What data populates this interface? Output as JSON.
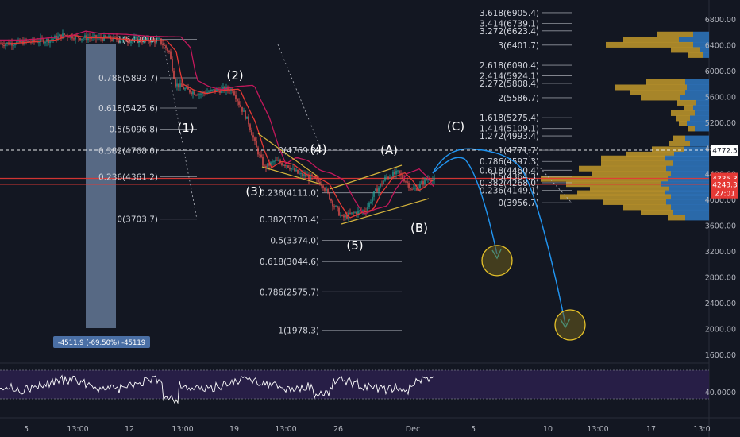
{
  "chart_data": {
    "type": "candlestick",
    "y_axis": {
      "ticks": [
        "6800.00",
        "6400.00",
        "6000.00",
        "5600.00",
        "5200.00",
        "4800.00",
        "4400.00",
        "4000.00",
        "3600.00",
        "3200.00",
        "2800.00",
        "2400.00",
        "2000.00",
        "1600.00"
      ],
      "labels": [
        {
          "text": "4772.5",
          "value": 4772.5,
          "color": "#ffffff",
          "text_color": "#131722"
        },
        {
          "text": "4335.3",
          "value": 4335.3,
          "color": "#e53935",
          "text_color": "#ffffff"
        },
        {
          "text": "4243.3",
          "value": 4243.3,
          "color": "#e53935",
          "text_color": "#ffffff"
        },
        {
          "text": "27:01",
          "value": 4110,
          "color": "#e53935",
          "text_color": "#ffffff"
        }
      ]
    },
    "x_axis": {
      "ticks": [
        {
          "label": "5",
          "x": 0
        },
        {
          "label": "13:00",
          "x": 1
        },
        {
          "label": "12",
          "x": 2
        },
        {
          "label": "13:00",
          "x": 3
        },
        {
          "label": "19",
          "x": 4
        },
        {
          "label": "13:00",
          "x": 5
        },
        {
          "label": "26",
          "x": 6
        },
        {
          "label": "Dec",
          "x": 7
        },
        {
          "label": "5",
          "x": 8
        },
        {
          "label": "10",
          "x": 9
        },
        {
          "label": "13:00",
          "x": 10
        },
        {
          "label": "17",
          "x": 11
        },
        {
          "label": "13:0",
          "x": 12
        }
      ]
    },
    "fib_levels_left": [
      {
        "label": "1(6490.0)",
        "value": 6490
      },
      {
        "label": "0.786(5893.7)",
        "value": 5893.7
      },
      {
        "label": "0.618(5425.6)",
        "value": 5425.6
      },
      {
        "label": "0.5(5096.8)",
        "value": 5096.8
      },
      {
        "label": "0.382(4768.0)",
        "value": 4768
      },
      {
        "label": "0.236(4361.2)",
        "value": 4361.2
      },
      {
        "label": "0(3703.7)",
        "value": 3703.7
      }
    ],
    "fib_levels_mid": [
      {
        "label": "0(4769.8)",
        "value": 4769.8
      },
      {
        "label": "0.236(4111.0)",
        "value": 4111
      },
      {
        "label": "0.382(3703.4)",
        "value": 3703.4
      },
      {
        "label": "0.5(3374.0)",
        "value": 3374
      },
      {
        "label": "0.618(3044.6)",
        "value": 3044.6
      },
      {
        "label": "0.786(2575.7)",
        "value": 2575.7
      },
      {
        "label": "1(1978.3)",
        "value": 1978.3
      }
    ],
    "fib_levels_right_ext": [
      {
        "label": "3.618(6905.4)",
        "value": 6905.4
      },
      {
        "label": "3.414(6739.1)",
        "value": 6739.1
      },
      {
        "label": "3.272(6623.4)",
        "value": 6623.4
      },
      {
        "label": "3(6401.7)",
        "value": 6401.7
      },
      {
        "label": "2.618(6090.4)",
        "value": 6090.4
      },
      {
        "label": "2.414(5924.1)",
        "value": 5924.1
      },
      {
        "label": "2.272(5808.4)",
        "value": 5808.4
      },
      {
        "label": "2(5586.7)",
        "value": 5586.7
      },
      {
        "label": "1.618(5275.4)",
        "value": 5275.4
      },
      {
        "label": "1.414(5109.1)",
        "value": 5109.1
      },
      {
        "label": "1.272(4993.4)",
        "value": 4993.4
      },
      {
        "label": "1(4771.7)",
        "value": 4771.7
      }
    ],
    "fib_levels_right_ret": [
      {
        "label": "0.786(4597.3)",
        "value": 4597.3
      },
      {
        "label": "0.618(4460.4)",
        "value": 4460.4
      },
      {
        "label": "0.5(4364.3)",
        "value": 4364.3
      },
      {
        "label": "0.382(4268.0)",
        "value": 4268
      },
      {
        "label": "0.236(4149.1)",
        "value": 4149.1
      },
      {
        "label": "0(3956.7)",
        "value": 3956.7
      }
    ],
    "wave_labels": [
      "(1)",
      "(2)",
      "(3)",
      "(4)",
      "(5)",
      "(A)",
      "(B)",
      "(C)"
    ],
    "measure_label": "-4511.9 (-69.50%) -45119",
    "rsi": {
      "label": "40.0000",
      "value": 40
    },
    "horizontal_lines": [
      {
        "value": 4772.5,
        "style": "dashed",
        "color": "#ffffff"
      },
      {
        "value": 4335.3,
        "style": "solid",
        "color": "#e53935"
      },
      {
        "value": 4243.3,
        "style": "solid",
        "color": "#e53935"
      }
    ],
    "projected_targets": [
      3000,
      2000
    ]
  }
}
